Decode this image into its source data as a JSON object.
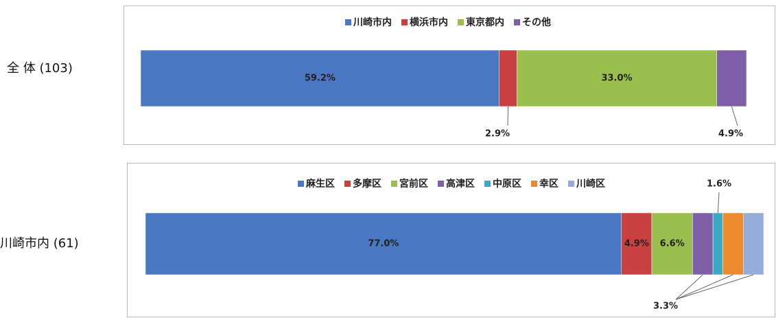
{
  "chart_data": [
    {
      "type": "stacked_bar_h",
      "categories": [
        "全 体 (103)"
      ],
      "xlim": [
        0,
        100
      ],
      "series": [
        {
          "name": "川崎市内",
          "color": "#4a78c2",
          "values": [
            59.2
          ],
          "value_labels": [
            "59.2%"
          ]
        },
        {
          "name": "横浜市内",
          "color": "#c94040",
          "values": [
            2.9
          ],
          "value_labels": [
            "2.9%"
          ]
        },
        {
          "name": "東京都内",
          "color": "#9bbf4f",
          "values": [
            33.0
          ],
          "value_labels": [
            "33.0%"
          ]
        },
        {
          "name": "その他",
          "color": "#7f5fa8",
          "values": [
            4.9
          ],
          "value_labels": [
            "4.9%"
          ]
        }
      ]
    },
    {
      "type": "stacked_bar_h",
      "categories": [
        "川崎市内 (61)"
      ],
      "xlim": [
        0,
        100
      ],
      "series": [
        {
          "name": "麻生区",
          "color": "#4a78c2",
          "values": [
            77.0
          ],
          "value_labels": [
            "77.0%"
          ]
        },
        {
          "name": "多摩区",
          "color": "#c94040",
          "values": [
            4.9
          ],
          "value_labels": [
            "4.9%"
          ]
        },
        {
          "name": "宮前区",
          "color": "#9bbf4f",
          "values": [
            6.6
          ],
          "value_labels": [
            "6.6%"
          ]
        },
        {
          "name": "高津区",
          "color": "#7f5fa8",
          "values": [
            3.3
          ],
          "value_labels": [
            "3.3%"
          ]
        },
        {
          "name": "中原区",
          "color": "#3aa9c4",
          "values": [
            1.6
          ],
          "value_labels": [
            "1.6%"
          ]
        },
        {
          "name": "幸区",
          "color": "#ee8a2e",
          "values": [
            3.3
          ],
          "value_labels": [
            null
          ]
        },
        {
          "name": "川崎区",
          "color": "#94acd8",
          "values": [
            3.3
          ],
          "value_labels": [
            null
          ]
        }
      ]
    }
  ]
}
